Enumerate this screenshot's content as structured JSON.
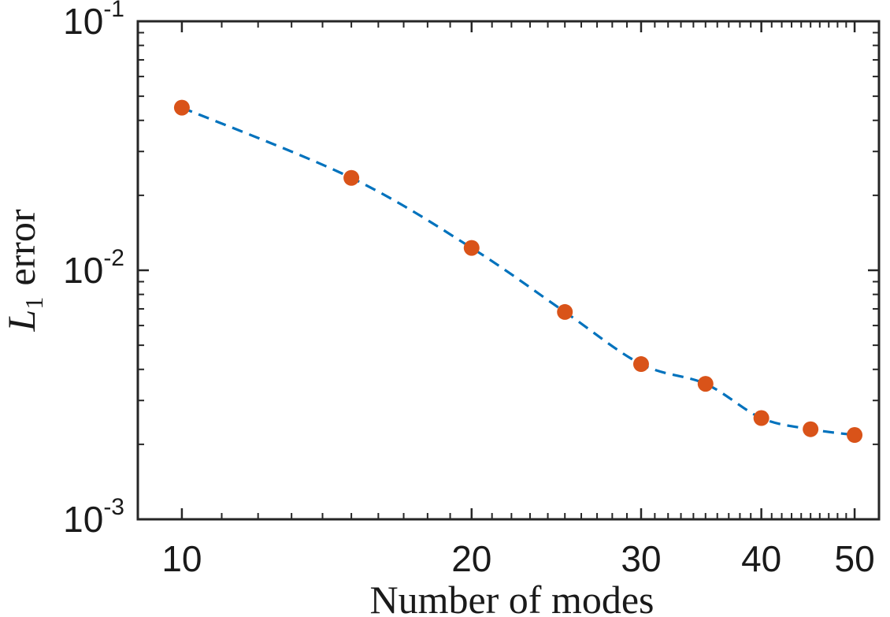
{
  "chart_data": {
    "type": "line",
    "xscale": "log",
    "yscale": "log",
    "xlim": [
      9,
      53
    ],
    "ylim": [
      0.001,
      0.1
    ],
    "xlabel": "Number of modes",
    "ylabel": "L1 error",
    "ylabel_parts": {
      "main": "L",
      "sub": "1",
      "rest": "error"
    },
    "xticks": [
      10,
      20,
      30,
      40,
      50
    ],
    "xtick_labels": [
      "10",
      "20",
      "30",
      "40",
      "50"
    ],
    "yticks": [
      0.001,
      0.01,
      0.1
    ],
    "ytick_labels": [
      {
        "base": "10",
        "exp": "-3"
      },
      {
        "base": "10",
        "exp": "-2"
      },
      {
        "base": "10",
        "exp": "-1"
      }
    ],
    "grid": false,
    "series": [
      {
        "x": [
          10,
          15,
          20,
          25,
          30,
          35,
          40,
          45,
          50
        ],
        "y": [
          0.045,
          0.0235,
          0.0123,
          0.0068,
          0.0042,
          0.0035,
          0.00255,
          0.0023,
          0.00218
        ],
        "line_style": "dashed",
        "line_color": "#0072BD",
        "marker": "circle",
        "marker_color": "#D95319"
      }
    ]
  }
}
